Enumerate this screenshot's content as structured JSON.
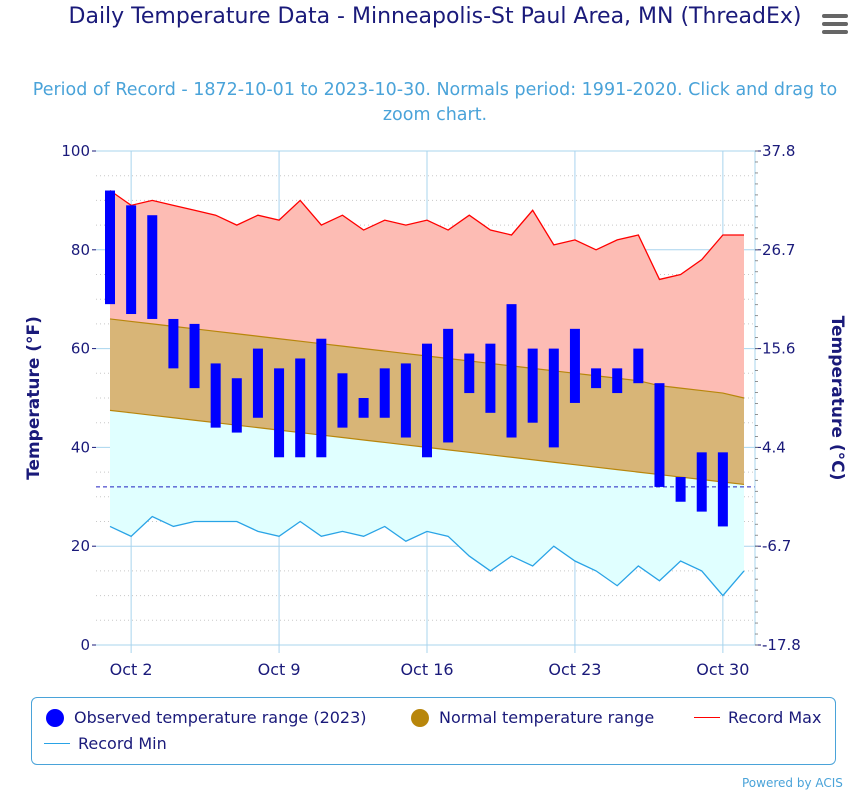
{
  "title": "Daily Temperature Data - Minneapolis-St Paul Area, MN (ThreadEx)",
  "subtitle": "Period of Record - 1872-10-01 to 2023-10-30. Normals period: 1991-2020. Click and drag to zoom chart.",
  "menu_icon": "hamburger-menu-icon",
  "powered_by": "Powered by ACIS",
  "legend": [
    {
      "label": "Observed temperature range (2023)",
      "color": "#0000ff",
      "shape": "dot"
    },
    {
      "label": "Normal temperature range",
      "color": "#b8860b",
      "shape": "dot"
    },
    {
      "label": "Record Max",
      "color": "#ff0000",
      "shape": "line"
    },
    {
      "label": "Record Min",
      "color": "#29a3e6",
      "shape": "line"
    }
  ],
  "chart_data": {
    "type": "bar",
    "title": "Daily Temperature Data - Minneapolis-St Paul Area, MN (ThreadEx)",
    "ylabel": "Temperature (°F)",
    "ylabel_right": "Temperature (°C)",
    "ylim": [
      0,
      100
    ],
    "y_ticks": [
      "0",
      "20",
      "40",
      "60",
      "80",
      "100"
    ],
    "y_ticks_right": [
      "-17.8",
      "-6.7",
      "4.4",
      "15.6",
      "26.7",
      "37.8"
    ],
    "x_tick_labels": [
      "Oct 2",
      "Oct 9",
      "Oct 16",
      "Oct 23",
      "Oct 30"
    ],
    "x_tick_days": [
      2,
      9,
      16,
      23,
      30
    ],
    "days": [
      1,
      2,
      3,
      4,
      5,
      6,
      7,
      8,
      9,
      10,
      11,
      12,
      13,
      14,
      15,
      16,
      17,
      18,
      19,
      20,
      21,
      22,
      23,
      24,
      25,
      26,
      27,
      28,
      29,
      30,
      31
    ],
    "freezing_line": 32,
    "observed_high": [
      92,
      89,
      87,
      66,
      65,
      57,
      54,
      60,
      56,
      58,
      62,
      55,
      50,
      56,
      57,
      61,
      64,
      59,
      61,
      69,
      60,
      60,
      64,
      56,
      56,
      60,
      53,
      34,
      39,
      39,
      null
    ],
    "observed_low": [
      69,
      67,
      66,
      56,
      52,
      44,
      43,
      46,
      38,
      38,
      38,
      44,
      46,
      46,
      42,
      38,
      41,
      51,
      47,
      42,
      45,
      40,
      49,
      52,
      51,
      53,
      32,
      29,
      27,
      24,
      null
    ],
    "normal_high": [
      66,
      65.5,
      65,
      64.5,
      64,
      63.5,
      63,
      62.5,
      62,
      61.5,
      61,
      60.5,
      60,
      59.5,
      59,
      58.5,
      58,
      57.5,
      57,
      56.5,
      56,
      55.5,
      55,
      54.5,
      54,
      53.5,
      52.5,
      52,
      51.5,
      51,
      50
    ],
    "normal_low": [
      47.5,
      47,
      46.5,
      46,
      45.5,
      45,
      44.5,
      44,
      43.5,
      43,
      42.5,
      42,
      41.5,
      41,
      40.5,
      40,
      39.5,
      39,
      38.5,
      38,
      37.5,
      37,
      36.5,
      36,
      35.5,
      35,
      34.5,
      34,
      33.5,
      33,
      32.5
    ],
    "record_max": [
      92,
      89,
      90,
      89,
      88,
      87,
      85,
      87,
      86,
      90,
      85,
      87,
      84,
      86,
      85,
      86,
      84,
      87,
      84,
      83,
      88,
      81,
      82,
      80,
      82,
      83,
      74,
      75,
      78,
      83,
      83
    ],
    "record_min": [
      24,
      22,
      26,
      24,
      25,
      25,
      25,
      23,
      22,
      25,
      22,
      23,
      22,
      24,
      21,
      23,
      22,
      18,
      15,
      18,
      16,
      20,
      17,
      15,
      12,
      16,
      13,
      17,
      15,
      10,
      15
    ],
    "series": [
      {
        "name": "Observed temperature range (2023)",
        "color": "#0000ff"
      },
      {
        "name": "Normal temperature range",
        "color": "#b8860b"
      },
      {
        "name": "Record Max",
        "color": "#ff0000"
      },
      {
        "name": "Record Min",
        "color": "#29a3e6"
      }
    ]
  }
}
